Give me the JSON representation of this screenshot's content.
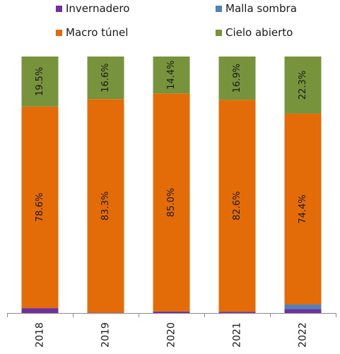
{
  "chart_data": {
    "type": "bar",
    "stacked": true,
    "percent": true,
    "categories": [
      "2018",
      "2019",
      "2020",
      "2021",
      "2022"
    ],
    "series": [
      {
        "name": "Invernadero",
        "color": "#7030a0",
        "values": [
          1.9,
          0.1,
          0.6,
          0.5,
          1.5
        ]
      },
      {
        "name": "Malla sombra",
        "color": "#4f81bd",
        "values": [
          0.0,
          0.0,
          0.0,
          0.0,
          1.8
        ]
      },
      {
        "name": "Macro túnel",
        "color": "#e36c09",
        "values": [
          78.6,
          83.3,
          85.0,
          82.6,
          74.4
        ]
      },
      {
        "name": "Cielo abierto",
        "color": "#77933c",
        "values": [
          19.5,
          16.6,
          14.4,
          16.9,
          22.3
        ]
      }
    ],
    "data_labels": {
      "Macro túnel": [
        "78.6%",
        "83.3%",
        "85.0%",
        "82.6%",
        "74.4%"
      ],
      "Cielo abierto": [
        "19.5%",
        "16.6%",
        "14.4%",
        "16.9%",
        "22.3%"
      ]
    },
    "ylim": [
      0,
      100
    ],
    "legend": {
      "placement": "top",
      "order": [
        "Invernadero",
        "Malla sombra",
        "Macro túnel",
        "Cielo abierto"
      ]
    },
    "grid": false
  }
}
